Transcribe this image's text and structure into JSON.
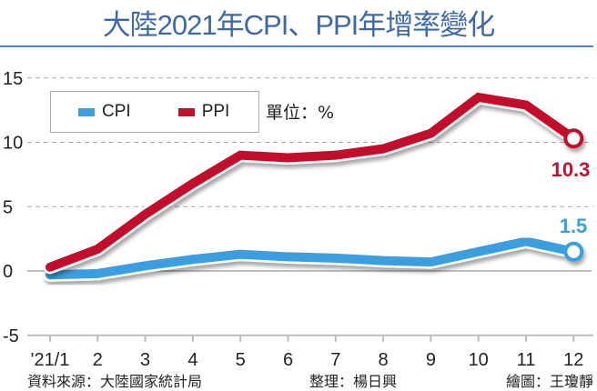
{
  "title": "大陸2021年CPI、PPI年增率變化",
  "legend": {
    "cpi": "CPI",
    "ppi": "PPI",
    "unit": "單位：%"
  },
  "colors": {
    "cpi": "#3a9ee0",
    "ppi": "#c4112b",
    "title": "#3d68ad"
  },
  "footer": {
    "source": "資料來源：大陸國家統計局",
    "editor": "整理：楊日興",
    "designer": "繪圖：王瓊靜"
  },
  "annotations": {
    "ppi_last": "10.3",
    "cpi_last": "1.5"
  },
  "chart_data": {
    "type": "line",
    "title": "大陸2021年CPI、PPI年增率變化",
    "xlabel": "",
    "ylabel": "單位：%",
    "categories": [
      "'21/1",
      "2",
      "3",
      "4",
      "5",
      "6",
      "7",
      "8",
      "9",
      "10",
      "11",
      "12"
    ],
    "series": [
      {
        "name": "CPI",
        "color": "#3a9ee0",
        "values": [
          -0.3,
          -0.2,
          0.4,
          0.9,
          1.3,
          1.1,
          1.0,
          0.8,
          0.7,
          1.5,
          2.3,
          1.5
        ]
      },
      {
        "name": "PPI",
        "color": "#c4112b",
        "values": [
          0.3,
          1.7,
          4.4,
          6.8,
          9.0,
          8.8,
          9.0,
          9.5,
          10.7,
          13.5,
          12.9,
          10.3
        ]
      }
    ],
    "yticks": [
      15,
      10,
      5,
      0,
      -5
    ],
    "ylim": [
      -5,
      15
    ],
    "grid": true,
    "legend_position": "top-left"
  }
}
